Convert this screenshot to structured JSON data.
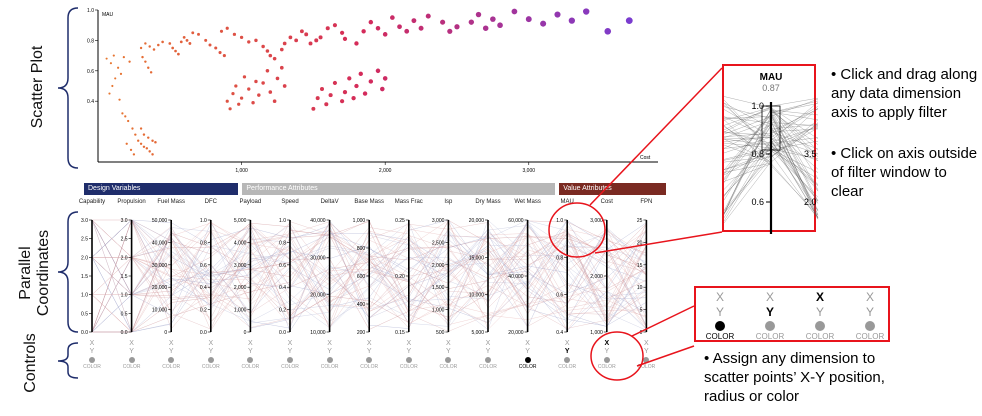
{
  "side_labels": {
    "scatter": "Scatter Plot",
    "parallel": "Parallel\nCoordinates",
    "controls": "Controls"
  },
  "groups": [
    {
      "label": "Design Variables",
      "color": "#1f2d6b"
    },
    {
      "label": "Performance Attributes",
      "color": "#b7b7b7"
    },
    {
      "label": "Value Attributes",
      "color": "#7a2a22"
    }
  ],
  "dimensions": [
    {
      "name": "Capability",
      "ticks": [
        "3.0",
        "2.5",
        "2.0",
        "1.5",
        "1.0",
        "0.5",
        "0.0"
      ]
    },
    {
      "name": "Propulsion",
      "ticks": [
        "3.0",
        "2.5",
        "2.0",
        "1.5",
        "1.0",
        "0.5",
        "0.0"
      ]
    },
    {
      "name": "Fuel Mass",
      "ticks": [
        "50,000",
        "40,000",
        "30,000",
        "20,000",
        "10,000",
        "0"
      ]
    },
    {
      "name": "DFC",
      "ticks": [
        "1.0",
        "0.8",
        "0.6",
        "0.4",
        "0.2",
        "0.0"
      ]
    },
    {
      "name": "Payload",
      "ticks": [
        "5,000",
        "4,000",
        "3,000",
        "2,000",
        "1,000",
        "0"
      ]
    },
    {
      "name": "Speed",
      "ticks": [
        "1.0",
        "0.8",
        "0.6",
        "0.4",
        "0.2",
        "0.0"
      ]
    },
    {
      "name": "DeltaV",
      "ticks": [
        "40,000",
        "30,000",
        "20,000",
        "10,000"
      ]
    },
    {
      "name": "Base Mass",
      "ticks": [
        "1,000",
        "800",
        "600",
        "400",
        "200"
      ]
    },
    {
      "name": "Mass Frac",
      "ticks": [
        "0.25",
        "0.20",
        "0.15"
      ]
    },
    {
      "name": "Isp",
      "ticks": [
        "3,000",
        "2,500",
        "2,000",
        "1,500",
        "1,000",
        "500"
      ]
    },
    {
      "name": "Dry Mass",
      "ticks": [
        "20,000",
        "15,000",
        "10,000",
        "5,000"
      ]
    },
    {
      "name": "Wet Mass",
      "ticks": [
        "60,000",
        "40,000",
        "20,000"
      ]
    },
    {
      "name": "MAU",
      "ticks": [
        "1.0",
        "0.8",
        "0.6",
        "0.4"
      ]
    },
    {
      "name": "Cost",
      "ticks": [
        "3,000",
        "2,000",
        "1,000"
      ]
    },
    {
      "name": "FPN",
      "ticks": [
        "25",
        "20",
        "15",
        "10",
        "5",
        "0"
      ]
    }
  ],
  "controls": [
    {
      "x": "X",
      "y": "Y",
      "color": "COLOR",
      "sel": "none"
    },
    {
      "x": "X",
      "y": "Y",
      "color": "COLOR",
      "sel": "none"
    },
    {
      "x": "X",
      "y": "Y",
      "color": "COLOR",
      "sel": "none"
    },
    {
      "x": "X",
      "y": "Y",
      "color": "COLOR",
      "sel": "none"
    },
    {
      "x": "X",
      "y": "Y",
      "color": "COLOR",
      "sel": "none"
    },
    {
      "x": "X",
      "y": "Y",
      "color": "COLOR",
      "sel": "none"
    },
    {
      "x": "X",
      "y": "Y",
      "color": "COLOR",
      "sel": "none"
    },
    {
      "x": "X",
      "y": "Y",
      "color": "COLOR",
      "sel": "none"
    },
    {
      "x": "X",
      "y": "Y",
      "color": "COLOR",
      "sel": "none"
    },
    {
      "x": "X",
      "y": "Y",
      "color": "COLOR",
      "sel": "none"
    },
    {
      "x": "X",
      "y": "Y",
      "color": "COLOR",
      "sel": "none"
    },
    {
      "x": "X",
      "y": "Y",
      "color": "COLOR",
      "sel": "color"
    },
    {
      "x": "X",
      "y": "Y",
      "color": "COLOR",
      "sel": "y"
    },
    {
      "x": "X",
      "y": "Y",
      "color": "COLOR",
      "sel": "x"
    },
    {
      "x": "X",
      "y": "Y",
      "color": "COLOR",
      "sel": "none"
    }
  ],
  "zoom_axis": {
    "title": "MAU",
    "value": "0.87",
    "ticks": [
      "1.0",
      "0.8",
      "0.6"
    ],
    "side_ticks": [
      "3.5",
      "2.0"
    ]
  },
  "zoom_controls": [
    {
      "x": "X",
      "y": "Y",
      "color": "COLOR",
      "sel": "color"
    },
    {
      "x": "X",
      "y": "Y",
      "color": "COLOR",
      "sel": "y"
    },
    {
      "x": "X",
      "y": "Y",
      "color": "COLOR",
      "sel": "x"
    },
    {
      "x": "X",
      "y": "Y",
      "color": "COLOR",
      "sel": "none"
    }
  ],
  "notes": {
    "filter": "• Click and drag along any data dimension axis to apply filter",
    "clear": "• Click on axis outside of filter window to clear",
    "assign": "• Assign any dimension to scatter points’ X-Y position, radius or color"
  },
  "colors": {
    "highlight": "#e8141c",
    "axis": "#000000"
  },
  "chart_data": {
    "type": "scatter",
    "xlabel": "Cost",
    "ylabel": "MAU",
    "xlim": [
      0,
      3900
    ],
    "ylim": [
      0,
      1.0
    ],
    "x_ticks": [
      "1,000",
      "2,000",
      "3,000"
    ],
    "y_ticks": [
      "1.0",
      "0.8",
      "0.6",
      "0.4"
    ],
    "color_encoding": "Wet Mass (orange low → purple high)",
    "points": [
      [
        60,
        0.68
      ],
      [
        90,
        0.65
      ],
      [
        110,
        0.7
      ],
      [
        140,
        0.62
      ],
      [
        180,
        0.69
      ],
      [
        220,
        0.66
      ],
      [
        160,
        0.58
      ],
      [
        120,
        0.55
      ],
      [
        100,
        0.5
      ],
      [
        80,
        0.45
      ],
      [
        150,
        0.41
      ],
      [
        170,
        0.32
      ],
      [
        190,
        0.3
      ],
      [
        210,
        0.27
      ],
      [
        240,
        0.22
      ],
      [
        260,
        0.18
      ],
      [
        280,
        0.14
      ],
      [
        200,
        0.12
      ],
      [
        230,
        0.08
      ],
      [
        250,
        0.05
      ],
      [
        300,
        0.12
      ],
      [
        320,
        0.1
      ],
      [
        340,
        0.09
      ],
      [
        360,
        0.07
      ],
      [
        380,
        0.05
      ],
      [
        300,
        0.22
      ],
      [
        320,
        0.18
      ],
      [
        350,
        0.16
      ],
      [
        380,
        0.14
      ],
      [
        400,
        0.13
      ],
      [
        310,
        0.69
      ],
      [
        330,
        0.66
      ],
      [
        350,
        0.62
      ],
      [
        370,
        0.59
      ],
      [
        300,
        0.75
      ],
      [
        330,
        0.78
      ],
      [
        360,
        0.76
      ],
      [
        390,
        0.74
      ],
      [
        420,
        0.77
      ],
      [
        450,
        0.79
      ],
      [
        500,
        0.78
      ],
      [
        520,
        0.75
      ],
      [
        540,
        0.73
      ],
      [
        560,
        0.71
      ],
      [
        580,
        0.79
      ],
      [
        600,
        0.82
      ],
      [
        620,
        0.8
      ],
      [
        640,
        0.78
      ],
      [
        660,
        0.85
      ],
      [
        700,
        0.84
      ],
      [
        750,
        0.8
      ],
      [
        780,
        0.77
      ],
      [
        820,
        0.75
      ],
      [
        850,
        0.72
      ],
      [
        880,
        0.7
      ],
      [
        860,
        0.86
      ],
      [
        900,
        0.88
      ],
      [
        950,
        0.84
      ],
      [
        1000,
        0.82
      ],
      [
        1050,
        0.79
      ],
      [
        1100,
        0.8
      ],
      [
        1150,
        0.76
      ],
      [
        1180,
        0.73
      ],
      [
        1200,
        0.7
      ],
      [
        1230,
        0.68
      ],
      [
        1280,
        0.74
      ],
      [
        1300,
        0.78
      ],
      [
        1340,
        0.82
      ],
      [
        1380,
        0.8
      ],
      [
        1420,
        0.86
      ],
      [
        1450,
        0.84
      ],
      [
        1480,
        0.78
      ],
      [
        1520,
        0.8
      ],
      [
        1550,
        0.82
      ],
      [
        1600,
        0.88
      ],
      [
        1650,
        0.9
      ],
      [
        1700,
        0.85
      ],
      [
        1720,
        0.81
      ],
      [
        1800,
        0.78
      ],
      [
        1850,
        0.86
      ],
      [
        1900,
        0.92
      ],
      [
        1950,
        0.88
      ],
      [
        2000,
        0.84
      ],
      [
        2050,
        0.95
      ],
      [
        2100,
        0.89
      ],
      [
        2150,
        0.86
      ],
      [
        2200,
        0.93
      ],
      [
        2250,
        0.88
      ],
      [
        2300,
        0.96
      ],
      [
        2400,
        0.92
      ],
      [
        2450,
        0.86
      ],
      [
        2500,
        0.89
      ],
      [
        2600,
        0.92
      ],
      [
        2650,
        0.97
      ],
      [
        2700,
        0.88
      ],
      [
        2750,
        0.94
      ],
      [
        2800,
        0.9
      ],
      [
        2900,
        0.99
      ],
      [
        3000,
        0.94
      ],
      [
        3100,
        0.91
      ],
      [
        3200,
        0.97
      ],
      [
        3300,
        0.93
      ],
      [
        3400,
        0.99
      ],
      [
        3550,
        0.86
      ],
      [
        3700,
        0.93
      ],
      [
        900,
        0.4
      ],
      [
        920,
        0.35
      ],
      [
        940,
        0.45
      ],
      [
        960,
        0.5
      ],
      [
        980,
        0.38
      ],
      [
        1000,
        0.42
      ],
      [
        1020,
        0.56
      ],
      [
        1050,
        0.48
      ],
      [
        1080,
        0.39
      ],
      [
        1100,
        0.53
      ],
      [
        1120,
        0.44
      ],
      [
        1150,
        0.52
      ],
      [
        1180,
        0.6
      ],
      [
        1200,
        0.46
      ],
      [
        1230,
        0.4
      ],
      [
        1250,
        0.55
      ],
      [
        1280,
        0.62
      ],
      [
        1300,
        0.5
      ],
      [
        1500,
        0.35
      ],
      [
        1530,
        0.42
      ],
      [
        1560,
        0.48
      ],
      [
        1590,
        0.38
      ],
      [
        1620,
        0.44
      ],
      [
        1650,
        0.52
      ],
      [
        1700,
        0.4
      ],
      [
        1720,
        0.46
      ],
      [
        1750,
        0.55
      ],
      [
        1780,
        0.42
      ],
      [
        1800,
        0.5
      ],
      [
        1830,
        0.58
      ],
      [
        1860,
        0.45
      ],
      [
        1900,
        0.53
      ],
      [
        1950,
        0.6
      ],
      [
        1980,
        0.48
      ],
      [
        2000,
        0.55
      ]
    ]
  }
}
